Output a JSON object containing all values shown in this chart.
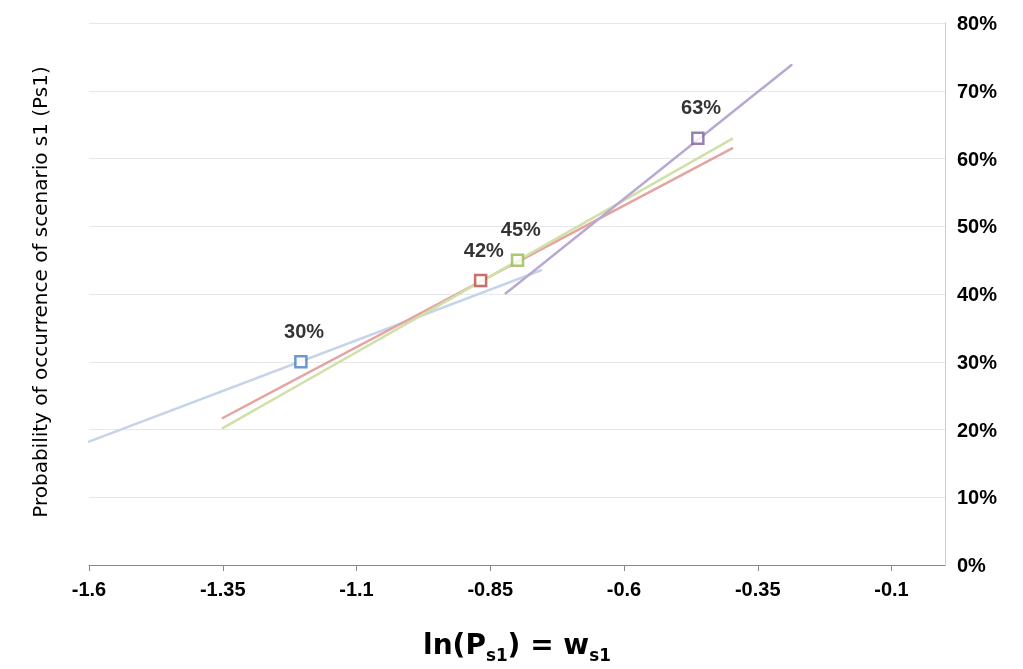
{
  "chart_data": {
    "type": "scatter",
    "xlabel": "ln(P$_{s1}$) = w$_{s1}$",
    "ylabel": "Probability of occurrence of scenario s1 (Ps1)",
    "xlim": [
      -1.6,
      0
    ],
    "xticks": [
      -1.6,
      -1.35,
      -1.1,
      -0.85,
      -0.6,
      -0.35,
      -0.1
    ],
    "ylim": [
      0,
      80
    ],
    "yticks": [
      {
        "value": 0,
        "label": "0%"
      },
      {
        "value": 10,
        "label": "10%"
      },
      {
        "value": 20,
        "label": "20%"
      },
      {
        "value": 30,
        "label": "30%"
      },
      {
        "value": 40,
        "label": "40%"
      },
      {
        "value": 50,
        "label": "50%"
      },
      {
        "value": 60,
        "label": "60%"
      },
      {
        "value": 70,
        "label": "70%"
      },
      {
        "value": 80,
        "label": "80%"
      }
    ],
    "grid": "y",
    "marker": "square",
    "series": [
      {
        "type": "line",
        "color": "#c6d4ea",
        "x": [
          -1.6,
          -0.755
        ],
        "values": [
          18.2,
          43.5
        ],
        "marker": "none"
      },
      {
        "type": "line",
        "color": "#e5a3a2",
        "x": [
          -1.35,
          -0.398
        ],
        "values": [
          21.7,
          61.5
        ],
        "marker": "none"
      },
      {
        "type": "line",
        "color": "#cfe0a8",
        "x": [
          -1.35,
          -0.398
        ],
        "values": [
          20.2,
          62.9
        ],
        "marker": "none"
      },
      {
        "type": "line",
        "color": "#b9a9d2",
        "x": [
          -0.821,
          -0.287
        ],
        "values": [
          40.1,
          73.8
        ],
        "marker": "none"
      },
      {
        "color": "#4a7ebb",
        "x": [
          -1.204
        ],
        "values": [
          30
        ],
        "value_labels": [
          "30%"
        ]
      },
      {
        "color": "#be4b48",
        "x": [
          -0.868
        ],
        "values": [
          42
        ],
        "value_labels": [
          "42%"
        ]
      },
      {
        "color": "#98b954",
        "x": [
          -0.799
        ],
        "values": [
          45
        ],
        "value_labels": [
          "45%"
        ]
      },
      {
        "color": "#7d60a0",
        "x": [
          -0.462
        ],
        "values": [
          63
        ],
        "value_labels": [
          "63%"
        ]
      }
    ]
  }
}
